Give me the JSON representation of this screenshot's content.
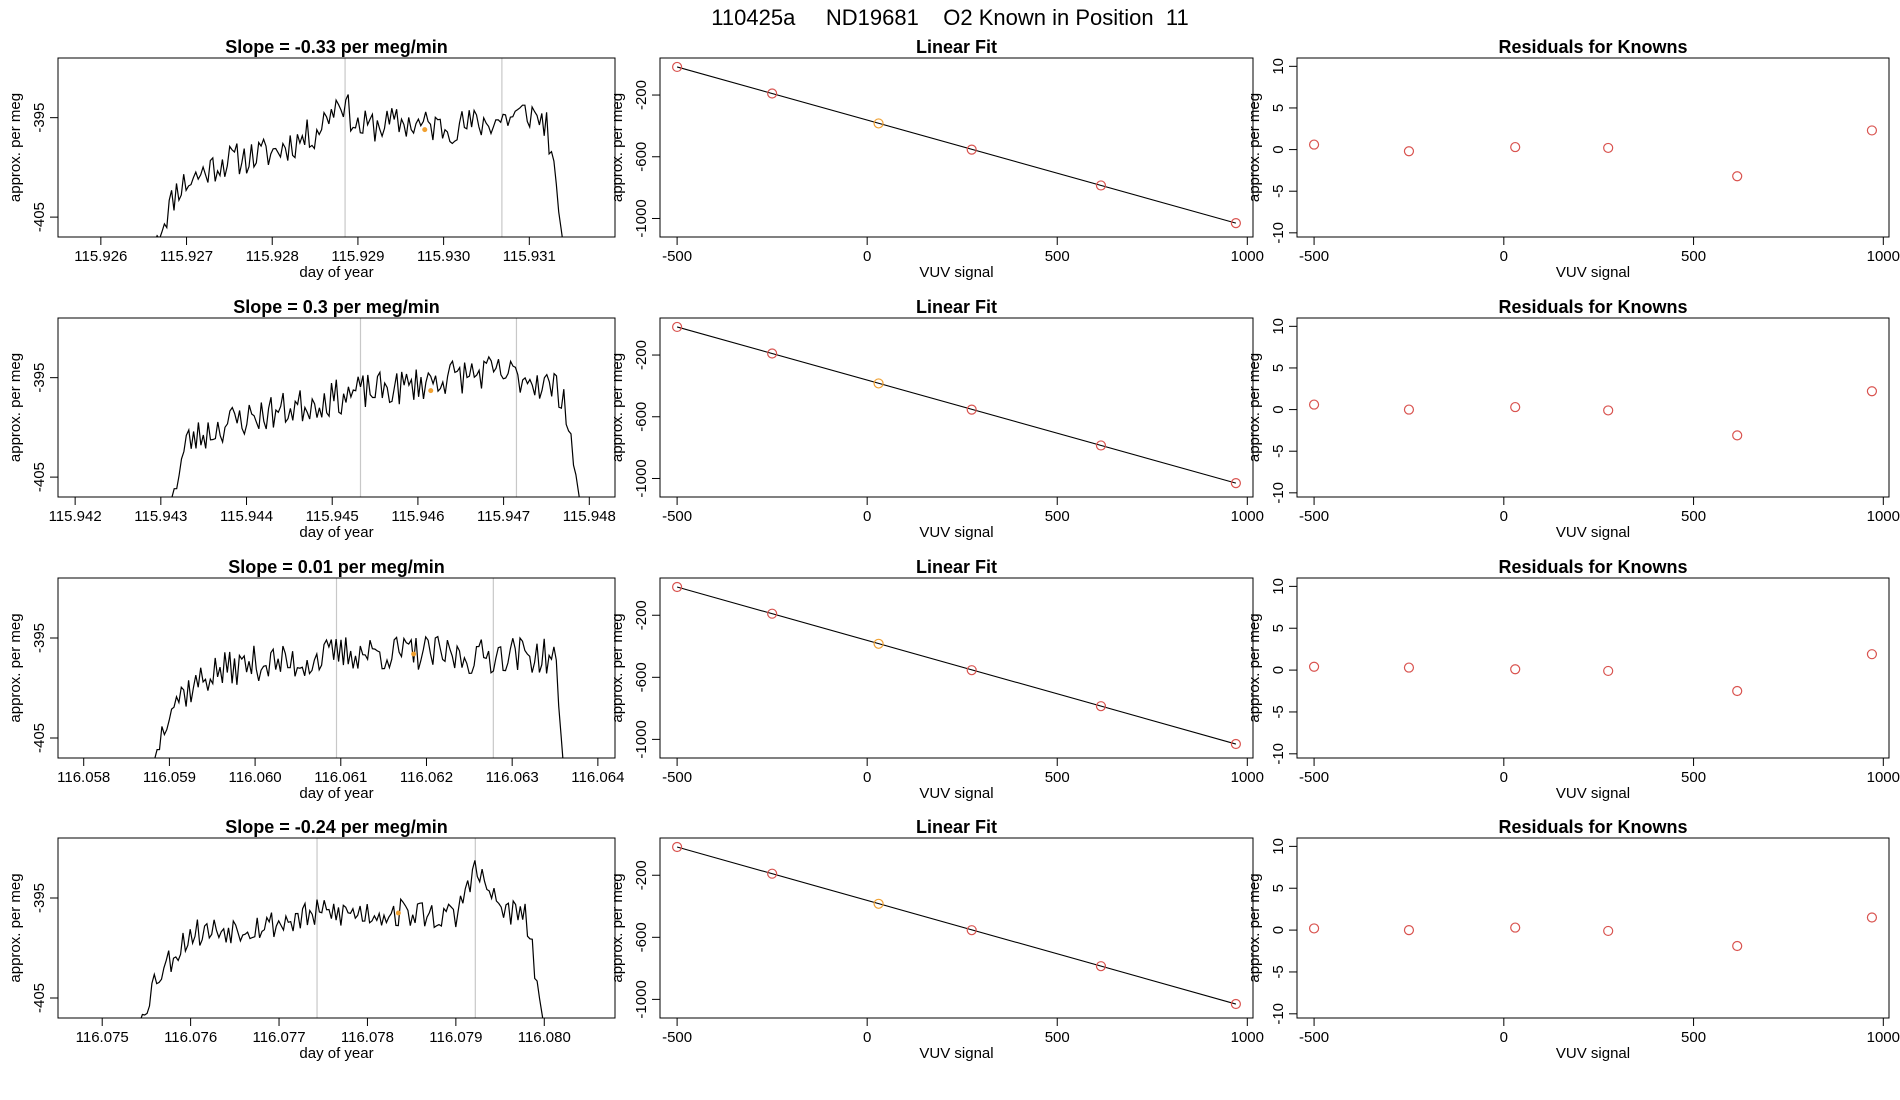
{
  "page_title": "110425a     ND19681    O2 Known in Position  11",
  "colors": {
    "trace": "#000000",
    "marker_known": "#d9534f",
    "marker_highlight": "#f0a030",
    "refline": "#c8c8c8",
    "frame": "#000000"
  },
  "chart_data": [
    {
      "panel": "row1-timeseries",
      "type": "line",
      "title": "Slope =  -0.33  per meg/min",
      "xlabel": "day of year",
      "ylabel": "approx. per meg",
      "xlim": [
        115.9255,
        115.932
      ],
      "ylim": [
        -407,
        -389
      ],
      "xticks": [
        115.926,
        115.927,
        115.928,
        115.929,
        115.93,
        115.931
      ],
      "xtick_labels": [
        "115.926",
        "115.927",
        "115.928",
        "115.929",
        "115.930",
        "115.931"
      ],
      "yticks": [
        -395,
        -405
      ],
      "ytick_labels": [
        "-395",
        "-405"
      ],
      "start": 115.9266,
      "end": 115.9314,
      "vlines": [
        115.92885,
        115.93068
      ],
      "highlight_point": [
        115.92978,
        -396.2
      ],
      "anchors": [
        [
          115.9266,
          -408
        ],
        [
          115.9269,
          -402
        ],
        [
          115.9274,
          -399.5
        ],
        [
          115.928,
          -398.5
        ],
        [
          115.9285,
          -396.5
        ],
        [
          115.9288,
          -393
        ],
        [
          115.929,
          -396
        ],
        [
          115.9295,
          -395.5
        ],
        [
          115.93,
          -396
        ],
        [
          115.9305,
          -395.5
        ],
        [
          115.931,
          -394.5
        ],
        [
          115.9312,
          -395.5
        ],
        [
          115.9314,
          -408
        ]
      ],
      "noise_amp": 1.7,
      "seed": 11
    },
    {
      "panel": "row1-fit",
      "type": "scatter+line",
      "title": "Linear Fit",
      "xlabel": "VUV signal",
      "ylabel": "approx. per meg",
      "xlim": [
        -545,
        1015
      ],
      "ylim": [
        -1120,
        40
      ],
      "xticks": [
        -500,
        0,
        500,
        1000
      ],
      "xtick_labels": [
        "-500",
        "0",
        "500",
        "1000"
      ],
      "yticks": [
        -200,
        -600,
        -1000
      ],
      "ytick_labels": [
        "-200",
        "-600",
        "-1000"
      ],
      "x": [
        -500,
        -250,
        30,
        275,
        615,
        970
      ],
      "y": [
        -18,
        -190,
        -384,
        -554,
        -786,
        -1030
      ],
      "point_color": [
        "#d9534f",
        "#d9534f",
        "#f0a030",
        "#d9534f",
        "#d9534f",
        "#d9534f"
      ],
      "fit_line": [
        [
          -500,
          -18
        ],
        [
          970,
          -1030
        ]
      ]
    },
    {
      "panel": "row1-residuals",
      "type": "scatter",
      "title": "Residuals for Knowns",
      "xlabel": "VUV signal",
      "ylabel": "approx. per meg",
      "xlim": [
        -545,
        1015
      ],
      "ylim": [
        -10.5,
        11
      ],
      "xticks": [
        -500,
        0,
        500,
        1000
      ],
      "xtick_labels": [
        "-500",
        "0",
        "500",
        "1000"
      ],
      "yticks": [
        10,
        5,
        0,
        -5,
        -10
      ],
      "ytick_labels": [
        "10",
        "5",
        "0",
        "-5",
        "-10"
      ],
      "x": [
        -500,
        -250,
        30,
        275,
        615,
        970
      ],
      "y": [
        0.6,
        -0.2,
        0.3,
        0.2,
        -3.2,
        2.3
      ]
    },
    {
      "panel": "row2-timeseries",
      "type": "line",
      "title": "Slope =  0.3  per meg/min",
      "xlabel": "day of year",
      "ylabel": "approx. per meg",
      "xlim": [
        115.9418,
        115.9483
      ],
      "ylim": [
        -407,
        -389
      ],
      "xticks": [
        115.942,
        115.943,
        115.944,
        115.945,
        115.946,
        115.947,
        115.948
      ],
      "xtick_labels": [
        "115.942",
        "115.943",
        "115.944",
        "115.945",
        "115.946",
        "115.947",
        "115.948"
      ],
      "yticks": [
        -395,
        -405
      ],
      "ytick_labels": [
        "-395",
        "-405"
      ],
      "start": 115.9431,
      "end": 115.9479,
      "vlines": [
        115.94533,
        115.94715
      ],
      "highlight_point": [
        115.94615,
        -396.3
      ],
      "anchors": [
        [
          115.9431,
          -408
        ],
        [
          115.9433,
          -401.5
        ],
        [
          115.9438,
          -399.5
        ],
        [
          115.9443,
          -398.5
        ],
        [
          115.9448,
          -397.5
        ],
        [
          115.9453,
          -396.5
        ],
        [
          115.9458,
          -396
        ],
        [
          115.9463,
          -395
        ],
        [
          115.9468,
          -394.5
        ],
        [
          115.9473,
          -395
        ],
        [
          115.9477,
          -396.5
        ],
        [
          115.9479,
          -408
        ]
      ],
      "noise_amp": 1.8,
      "seed": 23
    },
    {
      "panel": "row2-fit",
      "type": "scatter+line",
      "title": "Linear Fit",
      "xlabel": "VUV signal",
      "ylabel": "approx. per meg",
      "xlim": [
        -545,
        1015
      ],
      "ylim": [
        -1120,
        40
      ],
      "xticks": [
        -500,
        0,
        500,
        1000
      ],
      "xtick_labels": [
        "-500",
        "0",
        "500",
        "1000"
      ],
      "yticks": [
        -200,
        -600,
        -1000
      ],
      "ytick_labels": [
        "-200",
        "-600",
        "-1000"
      ],
      "x": [
        -500,
        -250,
        30,
        275,
        615,
        970
      ],
      "y": [
        -18,
        -190,
        -384,
        -554,
        -786,
        -1030
      ],
      "point_color": [
        "#d9534f",
        "#d9534f",
        "#f0a030",
        "#d9534f",
        "#d9534f",
        "#d9534f"
      ],
      "fit_line": [
        [
          -500,
          -18
        ],
        [
          970,
          -1030
        ]
      ]
    },
    {
      "panel": "row2-residuals",
      "type": "scatter",
      "title": "Residuals for Knowns",
      "xlabel": "VUV signal",
      "ylabel": "approx. per meg",
      "xlim": [
        -545,
        1015
      ],
      "ylim": [
        -10.5,
        11
      ],
      "xticks": [
        -500,
        0,
        500,
        1000
      ],
      "xtick_labels": [
        "-500",
        "0",
        "500",
        "1000"
      ],
      "yticks": [
        10,
        5,
        0,
        -5,
        -10
      ],
      "ytick_labels": [
        "10",
        "5",
        "0",
        "-5",
        "-10"
      ],
      "x": [
        -500,
        -250,
        30,
        275,
        615,
        970
      ],
      "y": [
        0.6,
        0.0,
        0.3,
        -0.1,
        -3.1,
        2.2
      ]
    },
    {
      "panel": "row3-timeseries",
      "type": "line",
      "title": "Slope =  0.01  per meg/min",
      "xlabel": "day of year",
      "ylabel": "approx. per meg",
      "xlim": [
        116.0577,
        116.0642
      ],
      "ylim": [
        -407,
        -389
      ],
      "xticks": [
        116.058,
        116.059,
        116.06,
        116.061,
        116.062,
        116.063,
        116.064
      ],
      "xtick_labels": [
        "116.058",
        "116.059",
        "116.060",
        "116.061",
        "116.062",
        "116.063",
        "116.064"
      ],
      "yticks": [
        -395,
        -405
      ],
      "ytick_labels": [
        "-395",
        "-405"
      ],
      "start": 116.0588,
      "end": 116.0636,
      "vlines": [
        116.06095,
        116.06278
      ],
      "highlight_point": [
        116.06185,
        -396.6
      ],
      "anchors": [
        [
          116.0588,
          -408
        ],
        [
          116.059,
          -401.5
        ],
        [
          116.0595,
          -398.5
        ],
        [
          116.06,
          -397.5
        ],
        [
          116.0605,
          -397.5
        ],
        [
          116.061,
          -396.5
        ],
        [
          116.0615,
          -396.5
        ],
        [
          116.062,
          -396.5
        ],
        [
          116.0625,
          -397
        ],
        [
          116.063,
          -396.5
        ],
        [
          116.0635,
          -397
        ],
        [
          116.0636,
          -408
        ]
      ],
      "noise_amp": 1.8,
      "seed": 37
    },
    {
      "panel": "row3-fit",
      "type": "scatter+line",
      "title": "Linear Fit",
      "xlabel": "VUV signal",
      "ylabel": "approx. per meg",
      "xlim": [
        -545,
        1015
      ],
      "ylim": [
        -1120,
        40
      ],
      "xticks": [
        -500,
        0,
        500,
        1000
      ],
      "xtick_labels": [
        "-500",
        "0",
        "500",
        "1000"
      ],
      "yticks": [
        -200,
        -600,
        -1000
      ],
      "ytick_labels": [
        "-200",
        "-600",
        "-1000"
      ],
      "x": [
        -500,
        -250,
        30,
        275,
        615,
        970
      ],
      "y": [
        -18,
        -190,
        -384,
        -554,
        -786,
        -1030
      ],
      "point_color": [
        "#d9534f",
        "#d9534f",
        "#f0a030",
        "#d9534f",
        "#d9534f",
        "#d9534f"
      ],
      "fit_line": [
        [
          -500,
          -18
        ],
        [
          970,
          -1030
        ]
      ]
    },
    {
      "panel": "row3-residuals",
      "type": "scatter",
      "title": "Residuals for Knowns",
      "xlabel": "VUV signal",
      "ylabel": "approx. per meg",
      "xlim": [
        -545,
        1015
      ],
      "ylim": [
        -10.5,
        11
      ],
      "xticks": [
        -500,
        0,
        500,
        1000
      ],
      "xtick_labels": [
        "-500",
        "0",
        "500",
        "1000"
      ],
      "yticks": [
        10,
        5,
        0,
        -5,
        -10
      ],
      "ytick_labels": [
        "10",
        "5",
        "0",
        "-5",
        "-10"
      ],
      "x": [
        -500,
        -250,
        30,
        275,
        615,
        970
      ],
      "y": [
        0.4,
        0.3,
        0.1,
        -0.1,
        -2.5,
        1.9
      ]
    },
    {
      "panel": "row4-timeseries",
      "type": "line",
      "title": "Slope =  -0.24  per meg/min",
      "xlabel": "day of year",
      "ylabel": "approx. per meg",
      "xlim": [
        116.0745,
        116.0808
      ],
      "ylim": [
        -407,
        -389
      ],
      "xticks": [
        116.075,
        116.076,
        116.077,
        116.078,
        116.079,
        116.08
      ],
      "xtick_labels": [
        "116.075",
        "116.076",
        "116.077",
        "116.078",
        "116.079",
        "116.080"
      ],
      "yticks": [
        -395,
        -405
      ],
      "ytick_labels": [
        "-395",
        "-405"
      ],
      "start": 116.0754,
      "end": 116.08,
      "vlines": [
        116.07743,
        116.07922
      ],
      "highlight_point": [
        116.07835,
        -396.5
      ],
      "anchors": [
        [
          116.0754,
          -408
        ],
        [
          116.0756,
          -403
        ],
        [
          116.076,
          -398.5
        ],
        [
          116.0765,
          -398
        ],
        [
          116.077,
          -397.5
        ],
        [
          116.0775,
          -396.5
        ],
        [
          116.078,
          -396.5
        ],
        [
          116.0785,
          -396.5
        ],
        [
          116.079,
          -397
        ],
        [
          116.0792,
          -392
        ],
        [
          116.0795,
          -396
        ],
        [
          116.0798,
          -397
        ],
        [
          116.08,
          -408
        ]
      ],
      "noise_amp": 1.5,
      "seed": 53
    },
    {
      "panel": "row4-fit",
      "type": "scatter+line",
      "title": "Linear Fit",
      "xlabel": "VUV signal",
      "ylabel": "approx. per meg",
      "xlim": [
        -545,
        1015
      ],
      "ylim": [
        -1120,
        40
      ],
      "xticks": [
        -500,
        0,
        500,
        1000
      ],
      "xtick_labels": [
        "-500",
        "0",
        "500",
        "1000"
      ],
      "yticks": [
        -200,
        -600,
        -1000
      ],
      "ytick_labels": [
        "-200",
        "-600",
        "-1000"
      ],
      "x": [
        -500,
        -250,
        30,
        275,
        615,
        970
      ],
      "y": [
        -18,
        -190,
        -384,
        -554,
        -786,
        -1030
      ],
      "point_color": [
        "#d9534f",
        "#d9534f",
        "#f0a030",
        "#d9534f",
        "#d9534f",
        "#d9534f"
      ],
      "fit_line": [
        [
          -500,
          -18
        ],
        [
          970,
          -1030
        ]
      ]
    },
    {
      "panel": "row4-residuals",
      "type": "scatter",
      "title": "Residuals for Knowns",
      "xlabel": "VUV signal",
      "ylabel": "approx. per meg",
      "xlim": [
        -545,
        1015
      ],
      "ylim": [
        -10.5,
        11
      ],
      "xticks": [
        -500,
        0,
        500,
        1000
      ],
      "xtick_labels": [
        "-500",
        "0",
        "500",
        "1000"
      ],
      "yticks": [
        10,
        5,
        0,
        -5,
        -10
      ],
      "ytick_labels": [
        "10",
        "5",
        "0",
        "-5",
        "-10"
      ],
      "x": [
        -500,
        -250,
        30,
        275,
        615,
        970
      ],
      "y": [
        0.2,
        0.0,
        0.3,
        -0.1,
        -1.9,
        1.5
      ]
    }
  ]
}
